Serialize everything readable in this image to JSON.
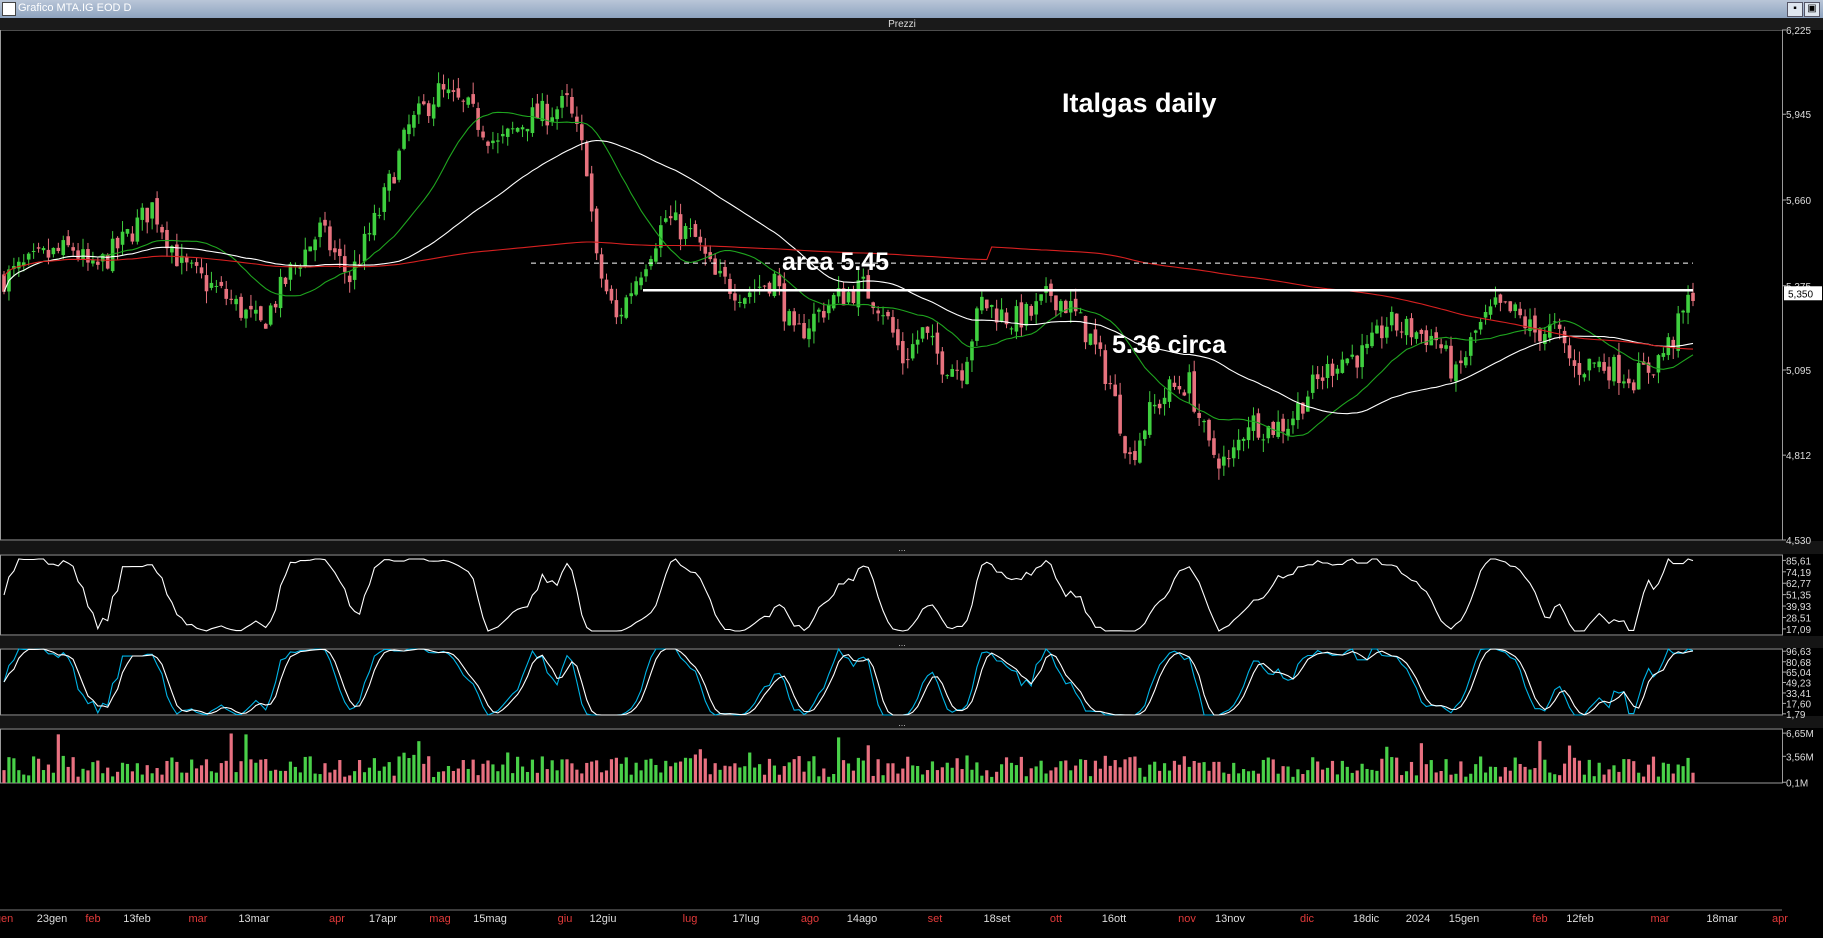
{
  "window": {
    "title": "Grafico MTA.IG EOD D"
  },
  "panels": {
    "price_label": "Prezzi",
    "sep_label": "..."
  },
  "chart_data": [
    {
      "type": "candlestick",
      "title": "Italgas daily",
      "ylim": [
        4.53,
        6.225
      ],
      "yticks": [
        "6,225",
        "5,945",
        "5,660",
        "5,375",
        "5,095",
        "4,812",
        "4,530"
      ],
      "last_price_label": "5,350",
      "annotations": [
        {
          "text": "area 5.45",
          "level": 5.45,
          "style": "dashed"
        },
        {
          "text": "5.36 circa",
          "level": 5.36,
          "style": "solid"
        }
      ],
      "x_labels": [
        {
          "t": "gen",
          "red": true
        },
        {
          "t": "23gen",
          "red": false
        },
        {
          "t": "feb",
          "red": true
        },
        {
          "t": "13feb",
          "red": false
        },
        {
          "t": "mar",
          "red": true
        },
        {
          "t": "13mar",
          "red": false
        },
        {
          "t": "apr",
          "red": true
        },
        {
          "t": "17apr",
          "red": false
        },
        {
          "t": "mag",
          "red": true
        },
        {
          "t": "15mag",
          "red": false
        },
        {
          "t": "giu",
          "red": true
        },
        {
          "t": "12giu",
          "red": false
        },
        {
          "t": "lug",
          "red": true
        },
        {
          "t": "17lug",
          "red": false
        },
        {
          "t": "ago",
          "red": true
        },
        {
          "t": "14ago",
          "red": false
        },
        {
          "t": "set",
          "red": true
        },
        {
          "t": "18set",
          "red": false
        },
        {
          "t": "ott",
          "red": true
        },
        {
          "t": "16ott",
          "red": false
        },
        {
          "t": "nov",
          "red": true
        },
        {
          "t": "13nov",
          "red": false
        },
        {
          "t": "dic",
          "red": true
        },
        {
          "t": "18dic",
          "red": false
        },
        {
          "t": "2024",
          "red": false
        },
        {
          "t": "15gen",
          "red": false
        },
        {
          "t": "feb",
          "red": true
        },
        {
          "t": "12feb",
          "red": false
        },
        {
          "t": "mar",
          "red": true
        },
        {
          "t": "18mar",
          "red": false
        },
        {
          "t": "apr",
          "red": true
        }
      ],
      "anchors": [
        [
          0,
          5.4
        ],
        [
          8,
          5.47
        ],
        [
          14,
          5.5
        ],
        [
          18,
          5.42
        ],
        [
          24,
          5.52
        ],
        [
          30,
          5.64
        ],
        [
          36,
          5.44
        ],
        [
          44,
          5.35
        ],
        [
          52,
          5.24
        ],
        [
          58,
          5.42
        ],
        [
          64,
          5.56
        ],
        [
          70,
          5.4
        ],
        [
          76,
          5.62
        ],
        [
          82,
          5.9
        ],
        [
          88,
          6.02
        ],
        [
          94,
          5.96
        ],
        [
          100,
          5.84
        ],
        [
          106,
          5.93
        ],
        [
          110,
          5.95
        ],
        [
          114,
          5.98
        ],
        [
          118,
          5.78
        ],
        [
          120,
          5.45
        ],
        [
          124,
          5.26
        ],
        [
          128,
          5.4
        ],
        [
          134,
          5.6
        ],
        [
          140,
          5.53
        ],
        [
          144,
          5.4
        ],
        [
          150,
          5.35
        ],
        [
          156,
          5.4
        ],
        [
          160,
          5.2
        ],
        [
          164,
          5.27
        ],
        [
          168,
          5.33
        ],
        [
          174,
          5.37
        ],
        [
          178,
          5.3
        ],
        [
          182,
          5.13
        ],
        [
          186,
          5.22
        ],
        [
          190,
          5.12
        ],
        [
          194,
          5.1
        ],
        [
          198,
          5.32
        ],
        [
          204,
          5.26
        ],
        [
          208,
          5.28
        ],
        [
          212,
          5.35
        ],
        [
          216,
          5.3
        ],
        [
          220,
          5.2
        ],
        [
          224,
          5.05
        ],
        [
          228,
          4.8
        ],
        [
          232,
          4.95
        ],
        [
          236,
          5.03
        ],
        [
          240,
          5.05
        ],
        [
          244,
          4.83
        ],
        [
          248,
          4.78
        ],
        [
          252,
          4.93
        ],
        [
          256,
          4.9
        ],
        [
          260,
          4.92
        ],
        [
          264,
          5.02
        ],
        [
          270,
          5.13
        ],
        [
          276,
          5.15
        ],
        [
          280,
          5.25
        ],
        [
          286,
          5.22
        ],
        [
          290,
          5.2
        ],
        [
          294,
          5.07
        ],
        [
          298,
          5.22
        ],
        [
          302,
          5.3
        ],
        [
          306,
          5.28
        ],
        [
          310,
          5.22
        ],
        [
          314,
          5.23
        ],
        [
          318,
          5.1
        ],
        [
          322,
          5.12
        ],
        [
          326,
          5.1
        ],
        [
          330,
          5.07
        ],
        [
          334,
          5.11
        ],
        [
          338,
          5.2
        ],
        [
          342,
          5.36
        ]
      ],
      "ma_fast_color": "#1fa51f",
      "ma_mid_color": "#ffffff",
      "ma_slow_color": "#d62020"
    },
    {
      "type": "line",
      "indicator": "oscillator",
      "yticks": [
        "85,61",
        "74,19",
        "62,77",
        "51,35",
        "39,93",
        "28,51",
        "17,09"
      ],
      "ylim": [
        11,
        91
      ],
      "color": "#ffffff"
    },
    {
      "type": "line",
      "indicator": "stochastic",
      "yticks": [
        "96,63",
        "80,68",
        "65,04",
        "49,23",
        "33,41",
        "17,60",
        "1,79"
      ],
      "ylim": [
        0,
        100
      ],
      "colors": [
        "#00b4e6",
        "#ffffff"
      ]
    },
    {
      "type": "bar",
      "indicator": "volume",
      "yticks": [
        "6,65M",
        "3,56M",
        "0,1M"
      ],
      "ylim": [
        0,
        7.2
      ],
      "up_color": "#49d049",
      "down_color": "#e87080"
    }
  ]
}
